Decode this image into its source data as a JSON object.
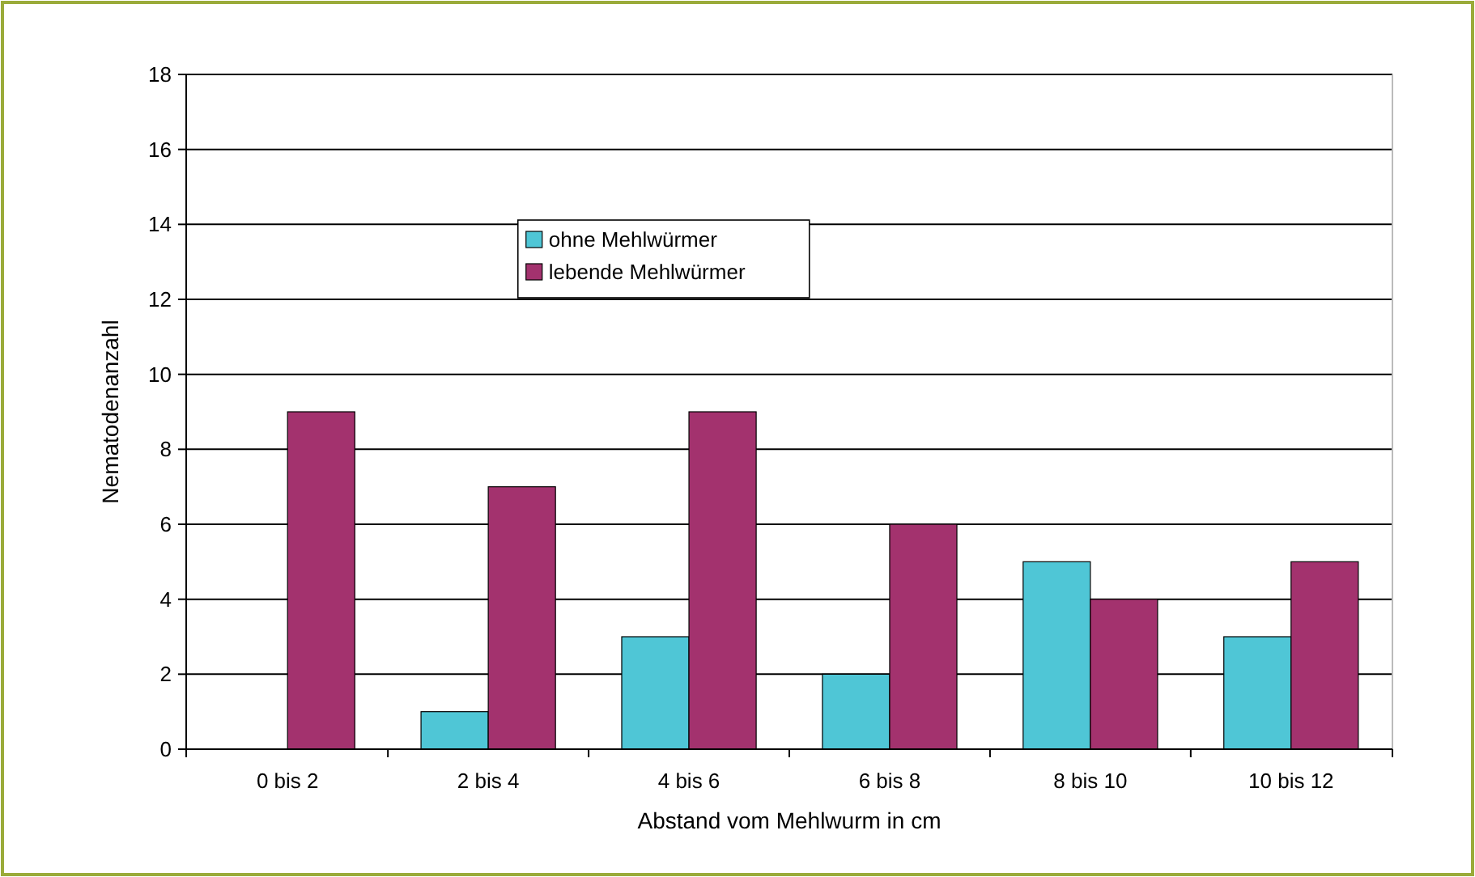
{
  "chart_data": {
    "type": "bar",
    "xlabel": "Abstand vom Mehlwurm in cm",
    "ylabel": "Nematodenanzahl",
    "categories": [
      "0 bis 2",
      "2 bis 4",
      "4 bis 6",
      "6 bis 8",
      "8 bis 10",
      "10 bis 12"
    ],
    "series": [
      {
        "name": "ohne Mehlwürmer",
        "color": "#4fc6d6",
        "values": [
          0,
          1,
          3,
          2,
          5,
          3
        ]
      },
      {
        "name": "lebende Mehlwürmer",
        "color": "#a3326e",
        "values": [
          9,
          7,
          9,
          6,
          4,
          5
        ]
      }
    ],
    "ylim": [
      0,
      18
    ],
    "yticks": [
      0,
      2,
      4,
      6,
      8,
      10,
      12,
      14,
      16,
      18
    ],
    "grid": "y",
    "legend": "top left"
  }
}
